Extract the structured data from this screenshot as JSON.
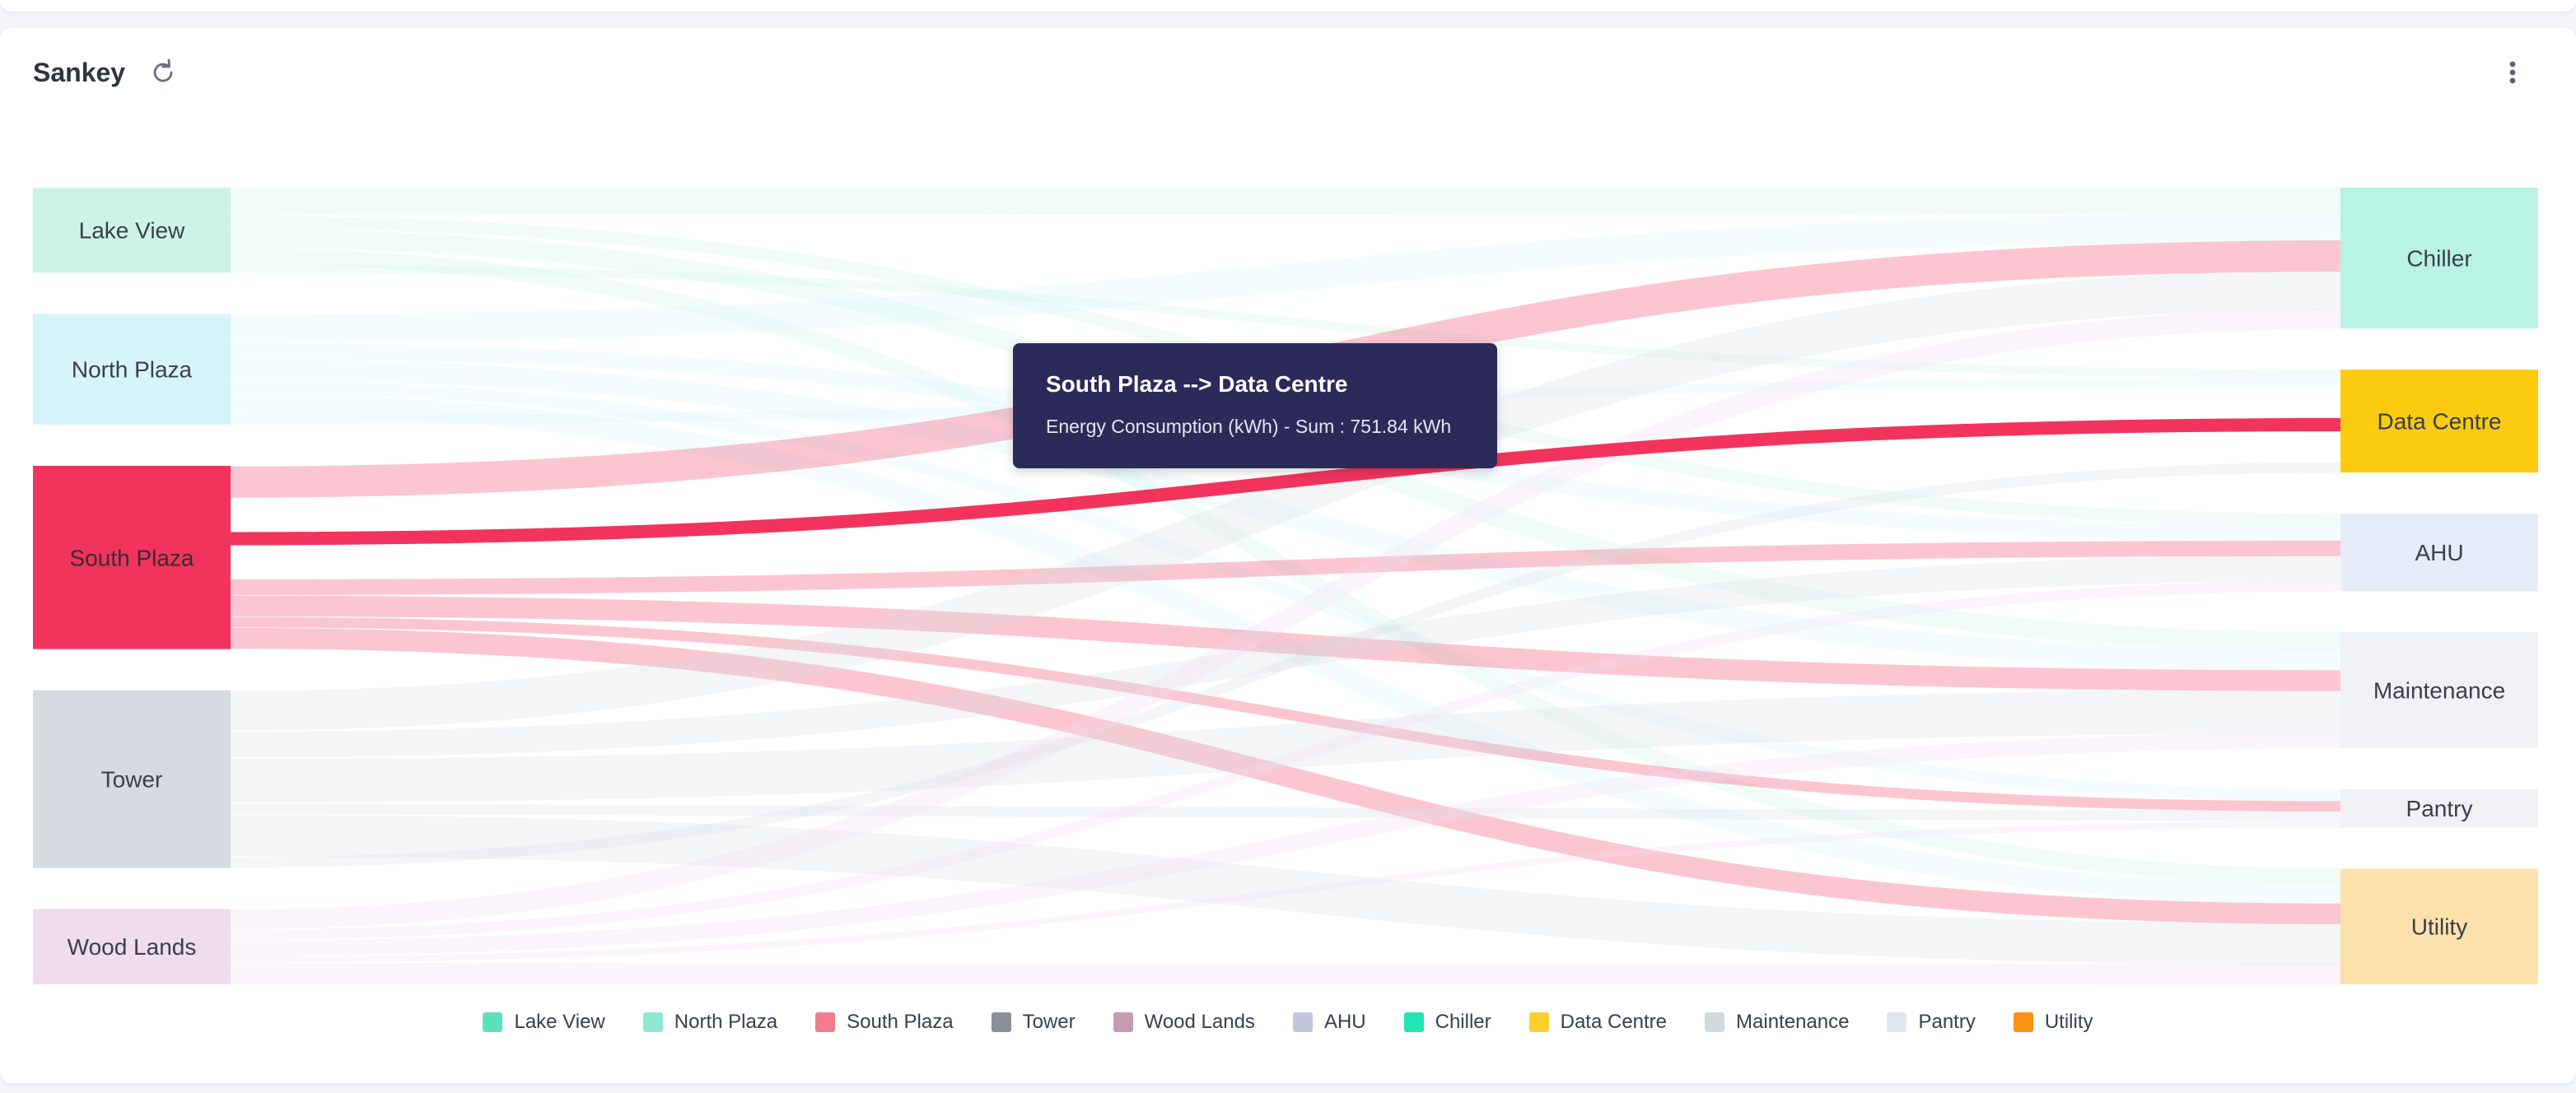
{
  "widget": {
    "title": "Sankey",
    "refresh_icon": "refresh-icon",
    "menu_icon": "kebab-menu-icon"
  },
  "tooltip": {
    "title": "South Plaza --> Data Centre",
    "body": "Energy Consumption (kWh) - Sum : 751.84 kWh"
  },
  "chart_data": {
    "type": "sankey",
    "metric": "Energy Consumption (kWh)",
    "sources": [
      {
        "name": "Lake View",
        "color": "#cdf3e6",
        "legend_color": "#5fe0bd"
      },
      {
        "name": "North Plaza",
        "color": "#d6f5fa",
        "legend_color": "#8fe7d2"
      },
      {
        "name": "South Plaza",
        "color": "#f2345c",
        "legend_color": "#f07b8e"
      },
      {
        "name": "Tower",
        "color": "#d6dbe1",
        "legend_color": "#8a9096"
      },
      {
        "name": "Wood Lands",
        "color": "#f0dcef",
        "legend_color": "#c69ab0"
      }
    ],
    "targets": [
      {
        "name": "Chiller",
        "color": "#b8f3e3",
        "legend_color": "#23e4b4"
      },
      {
        "name": "Data Centre",
        "color": "#fccb10",
        "legend_color": "#fbcf2c"
      },
      {
        "name": "AHU",
        "color": "#e6edf8",
        "legend_color": "#c3c5dc"
      },
      {
        "name": "Maintenance",
        "color": "#f0f1f4",
        "legend_color": "#d2d9dd"
      },
      {
        "name": "Pantry",
        "color": "#f0f1f4",
        "legend_color": "#e0e6ee"
      },
      {
        "name": "Utility",
        "color": "#fde1ad",
        "legend_color": "#fb9213"
      }
    ],
    "highlighted_link": {
      "source": "South Plaza",
      "target": "Data Centre",
      "value": 751.84
    },
    "links": [
      {
        "source": "Lake View",
        "target": "Chiller",
        "value": 260
      },
      {
        "source": "Lake View",
        "target": "AHU",
        "value": 120
      },
      {
        "source": "Lake View",
        "target": "Maintenance",
        "value": 180
      },
      {
        "source": "Lake View",
        "target": "Utility",
        "value": 150
      },
      {
        "source": "Lake View",
        "target": "Data Centre",
        "value": 80
      },
      {
        "source": "North Plaza",
        "target": "Chiller",
        "value": 270
      },
      {
        "source": "North Plaza",
        "target": "AHU",
        "value": 150
      },
      {
        "source": "North Plaza",
        "target": "Maintenance",
        "value": 200
      },
      {
        "source": "North Plaza",
        "target": "Pantry",
        "value": 120
      },
      {
        "source": "North Plaza",
        "target": "Utility",
        "value": 200
      },
      {
        "source": "North Plaza",
        "target": "Data Centre",
        "value": 90
      },
      {
        "source": "South Plaza",
        "target": "Chiller",
        "value": 300
      },
      {
        "source": "South Plaza",
        "target": "Data Centre",
        "value": 751.84
      },
      {
        "source": "South Plaza",
        "target": "AHU",
        "value": 150
      },
      {
        "source": "South Plaza",
        "target": "Maintenance",
        "value": 200
      },
      {
        "source": "South Plaza",
        "target": "Pantry",
        "value": 100
      },
      {
        "source": "South Plaza",
        "target": "Utility",
        "value": 200
      },
      {
        "source": "Tower",
        "target": "Chiller",
        "value": 380
      },
      {
        "source": "Tower",
        "target": "AHU",
        "value": 250
      },
      {
        "source": "Tower",
        "target": "Maintenance",
        "value": 420
      },
      {
        "source": "Tower",
        "target": "Pantry",
        "value": 100
      },
      {
        "source": "Tower",
        "target": "Utility",
        "value": 400
      },
      {
        "source": "Tower",
        "target": "Data Centre",
        "value": 100
      },
      {
        "source": "Wood Lands",
        "target": "Chiller",
        "value": 190
      },
      {
        "source": "Wood Lands",
        "target": "AHU",
        "value": 100
      },
      {
        "source": "Wood Lands",
        "target": "Maintenance",
        "value": 150
      },
      {
        "source": "Wood Lands",
        "target": "Pantry",
        "value": 60
      },
      {
        "source": "Wood Lands",
        "target": "Utility",
        "value": 200
      }
    ],
    "legend": [
      "Lake View",
      "North Plaza",
      "South Plaza",
      "Tower",
      "Wood Lands",
      "AHU",
      "Chiller",
      "Data Centre",
      "Maintenance",
      "Pantry",
      "Utility"
    ],
    "legend_placement": "bottom-center"
  }
}
